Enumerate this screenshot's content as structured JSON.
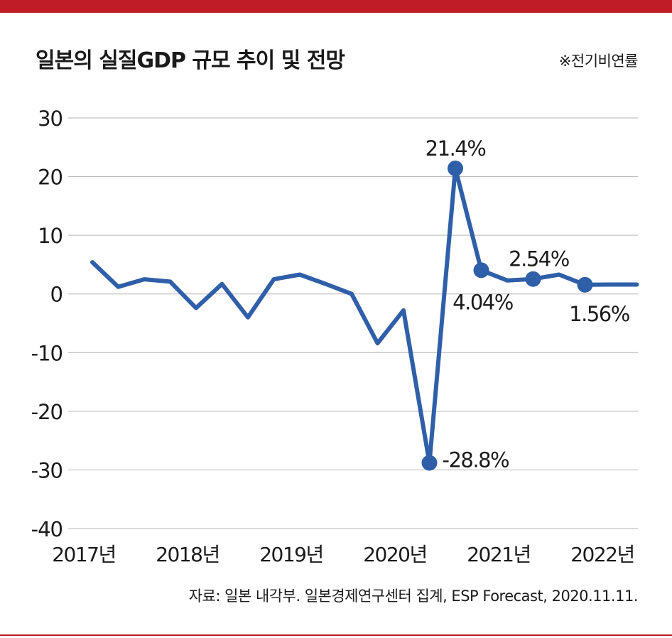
{
  "header": {
    "title": "일본의 실질GDP 규모 추이 및 전망",
    "unit_note": "※전기비연률"
  },
  "footer": {
    "source": "자료: 일본 내각부. 일본경제연구센터 집계, ESP Forecast, 2020.11.11."
  },
  "colors": {
    "accent_red": "#c01c28",
    "line_blue": "#2f5fa8",
    "grid": "#b5b5b5"
  },
  "chart_data": {
    "type": "line",
    "title": "일본의 실질GDP 규모 추이 및 전망",
    "xlabel": "",
    "ylabel": "",
    "ylim": [
      -40,
      30
    ],
    "yticks": [
      "30",
      "20",
      "10",
      "0",
      "-10",
      "-20",
      "-30",
      "-40"
    ],
    "ytick_values": [
      30,
      20,
      10,
      0,
      -10,
      -20,
      -30,
      -40
    ],
    "year_labels": [
      "2017년",
      "2018년",
      "2019년",
      "2020년",
      "2021년",
      "2022년"
    ],
    "x": [
      "2017 Q1",
      "2017 Q2",
      "2017 Q3",
      "2017 Q4",
      "2018 Q1",
      "2018 Q2",
      "2018 Q3",
      "2018 Q4",
      "2019 Q1",
      "2019 Q2",
      "2019 Q3",
      "2019 Q4",
      "2020 Q1",
      "2020 Q2",
      "2020 Q3",
      "2020 Q4",
      "2021 Q1",
      "2021 Q2",
      "2021 Q3",
      "2021 Q4",
      "2022 Q1",
      "2022 Q2"
    ],
    "values": [
      5.4,
      1.2,
      2.5,
      2.1,
      -2.4,
      1.7,
      -4.0,
      2.5,
      3.3,
      1.7,
      0.0,
      -8.4,
      -2.8,
      -28.8,
      21.4,
      4.04,
      2.3,
      2.54,
      3.3,
      1.56,
      1.6,
      1.6
    ],
    "grid": true,
    "series_color": "#2f5fa8",
    "annotations": [
      {
        "index": 13,
        "label": "-28.8%"
      },
      {
        "index": 14,
        "label": "21.4%"
      },
      {
        "index": 15,
        "label": "4.04%"
      },
      {
        "index": 17,
        "label": "2.54%"
      },
      {
        "index": 19,
        "label": "1.56%"
      }
    ]
  }
}
